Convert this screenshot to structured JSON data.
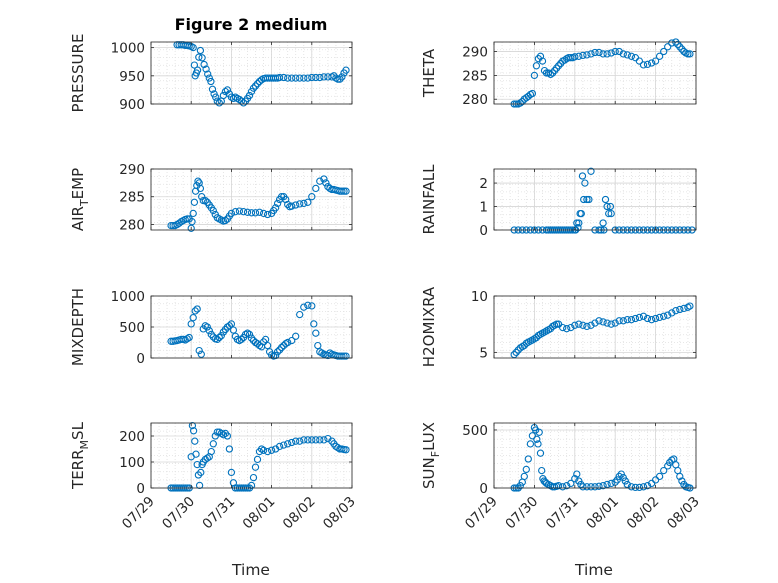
{
  "title": "Figure 2 medium",
  "xlabel": "Time",
  "colors": {
    "marker": "#0072BD",
    "axis": "#262626",
    "grid": "#dfdfdf"
  },
  "chart_data": [
    {
      "type": "scatter",
      "name": "PRESSURE",
      "ylabel": "PRESSURE",
      "title": "Figure 2 medium",
      "xlim": [
        0,
        5
      ],
      "ylim": [
        900,
        1010
      ],
      "yticks": [
        900,
        950,
        1000
      ],
      "x": [
        0.65,
        0.7,
        0.75,
        0.8,
        0.85,
        0.9,
        0.95,
        1.0,
        1.05,
        1.08,
        1.1,
        1.13,
        1.16,
        1.19,
        1.23,
        1.27,
        1.32,
        1.37,
        1.41,
        1.45,
        1.49,
        1.53,
        1.57,
        1.61,
        1.65,
        1.7,
        1.75,
        1.8,
        1.85,
        1.9,
        1.95,
        2.0,
        2.05,
        2.1,
        2.15,
        2.2,
        2.25,
        2.3,
        2.35,
        2.4,
        2.45,
        2.5,
        2.55,
        2.6,
        2.65,
        2.7,
        2.75,
        2.8,
        2.85,
        2.9,
        2.95,
        3.0,
        3.05,
        3.1,
        3.15,
        3.2,
        3.3,
        3.4,
        3.5,
        3.6,
        3.7,
        3.8,
        3.9,
        4.0,
        4.1,
        4.2,
        4.3,
        4.4,
        4.5,
        4.55,
        4.6,
        4.65,
        4.7,
        4.75,
        4.8,
        4.85
      ],
      "y": [
        1005,
        1005,
        1005,
        1005,
        1004,
        1004,
        1003,
        1002,
        1000,
        969,
        950,
        955,
        960,
        983,
        995,
        982,
        970,
        962,
        953,
        946,
        940,
        926,
        918,
        912,
        905,
        902,
        905,
        915,
        922,
        925,
        918,
        912,
        910,
        912,
        910,
        908,
        905,
        902,
        905,
        910,
        915,
        922,
        928,
        932,
        936,
        940,
        943,
        945,
        946,
        946,
        946,
        946,
        946,
        946,
        946,
        947,
        947,
        946,
        946,
        946,
        946,
        946,
        946,
        947,
        947,
        947,
        948,
        948,
        948,
        950,
        946,
        944,
        944,
        948,
        955,
        960
      ]
    },
    {
      "type": "scatter",
      "name": "THETA",
      "ylabel": "THETA",
      "xlim": [
        0,
        5
      ],
      "ylim": [
        279,
        292
      ],
      "yticks": [
        280,
        285,
        290
      ],
      "x": [
        0.5,
        0.55,
        0.6,
        0.65,
        0.7,
        0.75,
        0.8,
        0.85,
        0.9,
        0.95,
        1.0,
        1.05,
        1.1,
        1.15,
        1.2,
        1.25,
        1.3,
        1.35,
        1.4,
        1.45,
        1.5,
        1.55,
        1.6,
        1.65,
        1.7,
        1.75,
        1.8,
        1.85,
        1.9,
        1.95,
        2.0,
        2.1,
        2.2,
        2.3,
        2.4,
        2.5,
        2.6,
        2.7,
        2.8,
        2.9,
        3.0,
        3.1,
        3.2,
        3.3,
        3.4,
        3.5,
        3.6,
        3.7,
        3.8,
        3.9,
        4.0,
        4.1,
        4.2,
        4.3,
        4.4,
        4.5,
        4.55,
        4.6,
        4.65,
        4.7,
        4.75,
        4.8,
        4.85
      ],
      "y": [
        279,
        279,
        279,
        279.2,
        279.5,
        280,
        280.3,
        280.6,
        281,
        281.2,
        285,
        287,
        288.5,
        289,
        288,
        286,
        285.5,
        285.5,
        285.2,
        285.5,
        286,
        286.5,
        287,
        287.5,
        288,
        288.2,
        288.5,
        288.7,
        288.7,
        288.7,
        288.9,
        289,
        289.2,
        289.3,
        289.5,
        289.8,
        289.8,
        289.5,
        289.5,
        289.7,
        290,
        290,
        289.5,
        289.3,
        289,
        288.7,
        288,
        287.2,
        287.3,
        287.6,
        288,
        289,
        290,
        291,
        291.8,
        292,
        291.5,
        291,
        290.5,
        290,
        289.7,
        289.5,
        289.5
      ]
    },
    {
      "type": "scatter",
      "name": "AIR_TEMP",
      "ylabel": "AIR_TEMP",
      "xlim": [
        0,
        5
      ],
      "ylim": [
        279,
        290
      ],
      "yticks": [
        280,
        285,
        290
      ],
      "x": [
        0.5,
        0.55,
        0.6,
        0.65,
        0.7,
        0.75,
        0.8,
        0.85,
        0.9,
        0.95,
        1.0,
        1.02,
        1.05,
        1.08,
        1.11,
        1.14,
        1.17,
        1.2,
        1.23,
        1.26,
        1.3,
        1.35,
        1.4,
        1.45,
        1.5,
        1.55,
        1.6,
        1.65,
        1.7,
        1.75,
        1.8,
        1.85,
        1.9,
        1.95,
        2.0,
        2.1,
        2.2,
        2.3,
        2.4,
        2.5,
        2.6,
        2.7,
        2.8,
        2.9,
        3.0,
        3.05,
        3.1,
        3.15,
        3.2,
        3.25,
        3.3,
        3.35,
        3.4,
        3.45,
        3.5,
        3.6,
        3.7,
        3.8,
        3.9,
        4.0,
        4.1,
        4.2,
        4.3,
        4.35,
        4.4,
        4.45,
        4.5,
        4.55,
        4.6,
        4.65,
        4.7,
        4.75,
        4.8,
        4.85
      ],
      "y": [
        279.8,
        279.8,
        279.8,
        280,
        280.2,
        280.5,
        280.7,
        280.9,
        281,
        281,
        279.3,
        280.5,
        282,
        284,
        286,
        287,
        287.8,
        287.5,
        286.5,
        285,
        284.3,
        284.3,
        284,
        283.5,
        283,
        282.5,
        281.8,
        281.2,
        281,
        280.8,
        280.6,
        280.7,
        281,
        281.5,
        282,
        282.3,
        282.4,
        282.3,
        282.2,
        282.1,
        282.1,
        282.2,
        282,
        281.8,
        282,
        282.5,
        283,
        283.8,
        284.5,
        285,
        285,
        284.5,
        283.6,
        283.2,
        283.3,
        283.5,
        283.7,
        283.8,
        284,
        285,
        286.5,
        287.8,
        288.2,
        287.5,
        286.8,
        286.5,
        286.3,
        286.3,
        286.2,
        286.1,
        286,
        286,
        286,
        286
      ]
    },
    {
      "type": "scatter",
      "name": "RAINFALL",
      "ylabel": "RAINFALL",
      "xlim": [
        0,
        5
      ],
      "ylim": [
        0,
        2.6
      ],
      "yticks": [
        0,
        1,
        2
      ],
      "x": [
        0.5,
        0.6,
        0.7,
        0.8,
        0.9,
        1.0,
        1.1,
        1.2,
        1.3,
        1.35,
        1.4,
        1.45,
        1.5,
        1.55,
        1.6,
        1.65,
        1.7,
        1.75,
        1.8,
        1.85,
        1.9,
        1.95,
        2.0,
        2.02,
        2.05,
        2.08,
        2.1,
        2.13,
        2.16,
        2.19,
        2.22,
        2.25,
        2.3,
        2.35,
        2.4,
        2.5,
        2.6,
        2.65,
        2.7,
        2.72,
        2.76,
        2.8,
        2.84,
        2.88,
        2.9,
        3.0,
        3.1,
        3.2,
        3.3,
        3.4,
        3.5,
        3.6,
        3.7,
        3.8,
        3.9,
        4.0,
        4.1,
        4.2,
        4.3,
        4.4,
        4.5,
        4.6,
        4.7,
        4.8,
        4.9
      ],
      "y": [
        0,
        0,
        0,
        0,
        0,
        0,
        0,
        0,
        0,
        0,
        0,
        0,
        0,
        0,
        0,
        0,
        0,
        0,
        0,
        0,
        0,
        0,
        0,
        0,
        0.3,
        0.1,
        0.3,
        0.7,
        0.7,
        2.3,
        1.3,
        2.0,
        1.3,
        1.3,
        2.5,
        0,
        0,
        0,
        0.3,
        0,
        1.3,
        1.0,
        0.7,
        1.0,
        0.7,
        0,
        0,
        0,
        0,
        0,
        0,
        0,
        0,
        0,
        0,
        0,
        0,
        0,
        0,
        0,
        0,
        0,
        0,
        0,
        0
      ]
    },
    {
      "type": "scatter",
      "name": "MIXDEPTH",
      "ylabel": "MIXDEPTH",
      "xlim": [
        0,
        5
      ],
      "ylim": [
        0,
        1000
      ],
      "yticks": [
        0,
        500,
        1000
      ],
      "x": [
        0.5,
        0.55,
        0.6,
        0.65,
        0.7,
        0.75,
        0.8,
        0.85,
        0.9,
        0.95,
        1.0,
        1.05,
        1.1,
        1.15,
        1.2,
        1.25,
        1.3,
        1.35,
        1.4,
        1.45,
        1.5,
        1.55,
        1.6,
        1.65,
        1.7,
        1.75,
        1.8,
        1.85,
        1.9,
        1.95,
        2.0,
        2.05,
        2.1,
        2.15,
        2.2,
        2.25,
        2.3,
        2.35,
        2.4,
        2.45,
        2.5,
        2.55,
        2.6,
        2.65,
        2.7,
        2.75,
        2.8,
        2.85,
        2.9,
        2.95,
        3.0,
        3.05,
        3.1,
        3.15,
        3.2,
        3.25,
        3.3,
        3.35,
        3.4,
        3.5,
        3.6,
        3.7,
        3.8,
        3.9,
        4.0,
        4.05,
        4.1,
        4.15,
        4.2,
        4.25,
        4.3,
        4.35,
        4.4,
        4.45,
        4.5,
        4.55,
        4.6,
        4.65,
        4.7,
        4.75,
        4.8,
        4.85
      ],
      "y": [
        270,
        270,
        275,
        280,
        290,
        300,
        300,
        290,
        310,
        330,
        550,
        650,
        760,
        790,
        120,
        60,
        470,
        520,
        500,
        440,
        380,
        340,
        310,
        300,
        330,
        360,
        420,
        460,
        500,
        520,
        550,
        450,
        350,
        300,
        280,
        300,
        330,
        380,
        400,
        380,
        320,
        280,
        250,
        230,
        200,
        180,
        260,
        300,
        200,
        100,
        50,
        30,
        40,
        100,
        130,
        170,
        200,
        230,
        250,
        280,
        350,
        700,
        820,
        850,
        840,
        550,
        400,
        200,
        100,
        80,
        60,
        50,
        40,
        80,
        60,
        50,
        40,
        30,
        30,
        30,
        30,
        30
      ]
    },
    {
      "type": "scatter",
      "name": "H2OMIXRA",
      "ylabel": "H2OMIXRA",
      "xlim": [
        0,
        5
      ],
      "ylim": [
        4.5,
        10
      ],
      "yticks": [
        5,
        10
      ],
      "x": [
        0.5,
        0.55,
        0.6,
        0.65,
        0.7,
        0.75,
        0.8,
        0.85,
        0.9,
        0.95,
        1.0,
        1.05,
        1.1,
        1.15,
        1.2,
        1.25,
        1.3,
        1.35,
        1.4,
        1.45,
        1.5,
        1.55,
        1.6,
        1.7,
        1.8,
        1.9,
        2.0,
        2.1,
        2.2,
        2.3,
        2.4,
        2.5,
        2.6,
        2.7,
        2.8,
        2.9,
        3.0,
        3.1,
        3.2,
        3.3,
        3.4,
        3.5,
        3.6,
        3.7,
        3.8,
        3.9,
        4.0,
        4.1,
        4.2,
        4.3,
        4.4,
        4.5,
        4.6,
        4.7,
        4.8,
        4.85
      ],
      "y": [
        4.8,
        5.0,
        5.2,
        5.4,
        5.5,
        5.6,
        5.8,
        5.9,
        6.0,
        6.1,
        6.2,
        6.3,
        6.5,
        6.6,
        6.7,
        6.8,
        6.9,
        7.0,
        7.1,
        7.3,
        7.4,
        7.5,
        7.5,
        7.2,
        7.1,
        7.2,
        7.4,
        7.5,
        7.4,
        7.3,
        7.4,
        7.6,
        7.8,
        7.7,
        7.6,
        7.5,
        7.6,
        7.8,
        7.8,
        7.9,
        7.9,
        8.0,
        8.1,
        8.2,
        8.0,
        7.9,
        8.0,
        8.1,
        8.2,
        8.3,
        8.5,
        8.7,
        8.8,
        8.9,
        9.0,
        9.1
      ]
    },
    {
      "type": "scatter",
      "name": "TERR_MSL",
      "ylabel": "TERR_MSL",
      "xlim": [
        0,
        5
      ],
      "ylim": [
        0,
        250
      ],
      "yticks": [
        0,
        100,
        200
      ],
      "x": [
        0.5,
        0.55,
        0.6,
        0.65,
        0.7,
        0.75,
        0.8,
        0.85,
        0.9,
        0.95,
        1.0,
        1.03,
        1.06,
        1.09,
        1.12,
        1.15,
        1.18,
        1.21,
        1.24,
        1.27,
        1.3,
        1.35,
        1.4,
        1.45,
        1.5,
        1.55,
        1.6,
        1.65,
        1.7,
        1.75,
        1.8,
        1.85,
        1.9,
        1.95,
        2.0,
        2.05,
        2.1,
        2.15,
        2.2,
        2.25,
        2.3,
        2.35,
        2.4,
        2.45,
        2.5,
        2.55,
        2.6,
        2.65,
        2.7,
        2.75,
        2.8,
        2.9,
        3.0,
        3.1,
        3.2,
        3.3,
        3.4,
        3.5,
        3.6,
        3.7,
        3.8,
        3.9,
        4.0,
        4.1,
        4.2,
        4.3,
        4.4,
        4.5,
        4.55,
        4.6,
        4.65,
        4.7,
        4.75,
        4.8,
        4.85
      ],
      "y": [
        0,
        0,
        0,
        0,
        0,
        0,
        0,
        0,
        0,
        0,
        120,
        240,
        220,
        180,
        130,
        90,
        50,
        10,
        60,
        90,
        100,
        110,
        115,
        120,
        140,
        170,
        200,
        215,
        215,
        210,
        205,
        210,
        200,
        150,
        60,
        20,
        0,
        0,
        0,
        0,
        0,
        0,
        0,
        0,
        10,
        40,
        80,
        110,
        140,
        150,
        145,
        140,
        145,
        150,
        160,
        165,
        170,
        175,
        180,
        180,
        185,
        185,
        185,
        185,
        185,
        185,
        190,
        180,
        170,
        160,
        155,
        150,
        150,
        148,
        147
      ]
    },
    {
      "type": "scatter",
      "name": "SUN_FLUX",
      "ylabel": "SUN_FLUX",
      "xlim": [
        0,
        5
      ],
      "ylim": [
        0,
        560
      ],
      "yticks": [
        0,
        500
      ],
      "x": [
        0.5,
        0.55,
        0.6,
        0.65,
        0.7,
        0.75,
        0.8,
        0.85,
        0.9,
        0.95,
        1.0,
        1.03,
        1.06,
        1.09,
        1.12,
        1.15,
        1.18,
        1.21,
        1.24,
        1.27,
        1.3,
        1.35,
        1.4,
        1.45,
        1.5,
        1.55,
        1.6,
        1.7,
        1.8,
        1.9,
        2.0,
        2.05,
        2.1,
        2.15,
        2.2,
        2.3,
        2.4,
        2.5,
        2.6,
        2.7,
        2.8,
        2.9,
        3.0,
        3.05,
        3.1,
        3.15,
        3.2,
        3.25,
        3.3,
        3.4,
        3.5,
        3.6,
        3.7,
        3.8,
        3.9,
        4.0,
        4.1,
        4.2,
        4.3,
        4.35,
        4.4,
        4.45,
        4.5,
        4.55,
        4.6,
        4.65,
        4.7,
        4.75,
        4.8,
        4.85
      ],
      "y": [
        0,
        0,
        0,
        20,
        50,
        100,
        160,
        250,
        380,
        450,
        520,
        500,
        420,
        380,
        480,
        300,
        150,
        80,
        60,
        50,
        40,
        30,
        20,
        10,
        10,
        15,
        20,
        10,
        20,
        40,
        80,
        120,
        60,
        30,
        10,
        10,
        10,
        10,
        15,
        20,
        30,
        40,
        50,
        70,
        100,
        120,
        90,
        60,
        30,
        10,
        5,
        5,
        10,
        20,
        40,
        70,
        100,
        150,
        190,
        220,
        240,
        250,
        200,
        150,
        100,
        60,
        30,
        10,
        5,
        0
      ]
    }
  ],
  "xticks": [
    "07/29",
    "07/30",
    "07/31",
    "08/01",
    "08/02",
    "08/03"
  ]
}
